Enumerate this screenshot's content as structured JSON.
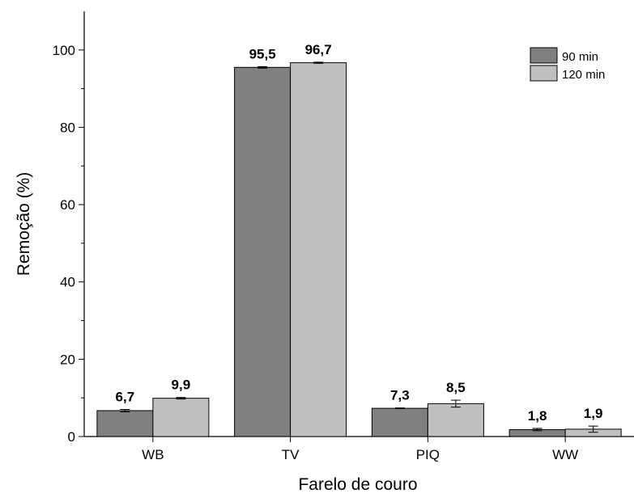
{
  "chart_data": {
    "type": "bar",
    "title": "",
    "xlabel": "Farelo de couro",
    "ylabel": "Remoção (%)",
    "categories": [
      "WB",
      "TV",
      "PIQ",
      "WW"
    ],
    "ylim": [
      0,
      110
    ],
    "yticks": [
      0,
      20,
      40,
      60,
      80,
      100
    ],
    "grid": false,
    "legend_position": "top-right",
    "series": [
      {
        "name": "90 min",
        "color": "#808080",
        "values": [
          6.7,
          95.5,
          7.3,
          1.8
        ],
        "labels": [
          "6,7",
          "95,5",
          "7,3",
          "1,8"
        ],
        "errors": [
          0.3,
          0.2,
          0.1,
          0.3
        ]
      },
      {
        "name": "120 min",
        "color": "#c0c0c0",
        "values": [
          9.9,
          96.7,
          8.5,
          1.9
        ],
        "labels": [
          "9,9",
          "96,7",
          "8,5",
          "1,9"
        ],
        "errors": [
          0.2,
          0.15,
          0.9,
          0.8
        ]
      }
    ]
  }
}
